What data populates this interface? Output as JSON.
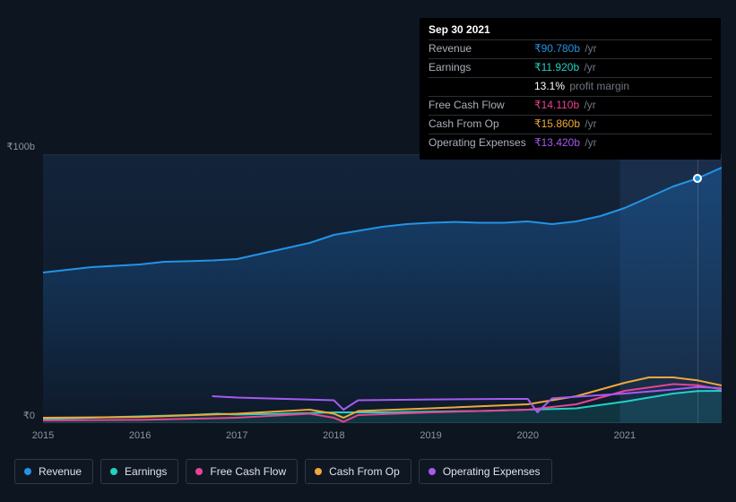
{
  "colors": {
    "background": "#0d1521",
    "grid": "#232b38",
    "plot_fill_top": "#13243b",
    "plot_fill_bottom": "#0d1521",
    "tooltip_bg": "#000000",
    "text_muted": "#8d95a2",
    "text": "#e0e3e9",
    "highlight_band": "rgba(40,70,110,0.35)"
  },
  "chart": {
    "type": "line",
    "xlim": [
      2015,
      2022
    ],
    "ylim": [
      0,
      100
    ],
    "ytick_top_label": "₹100b",
    "ytick_bottom_label": "₹0",
    "xticks": [
      2015,
      2016,
      2017,
      2018,
      2019,
      2020,
      2021
    ],
    "highlight_start_x": 2020.95,
    "cursor_x": 2021.75,
    "line_width": 2,
    "series": [
      {
        "id": "revenue",
        "name": "Revenue",
        "color": "#2393e6",
        "fill": "rgba(35,147,230,0.10)",
        "points": [
          [
            2015.0,
            56
          ],
          [
            2015.25,
            57
          ],
          [
            2015.5,
            58
          ],
          [
            2015.75,
            58.5
          ],
          [
            2016.0,
            59
          ],
          [
            2016.25,
            60
          ],
          [
            2016.5,
            60.2
          ],
          [
            2016.75,
            60.5
          ],
          [
            2017.0,
            61
          ],
          [
            2017.25,
            63
          ],
          [
            2017.5,
            65
          ],
          [
            2017.75,
            67
          ],
          [
            2018.0,
            70
          ],
          [
            2018.25,
            71.5
          ],
          [
            2018.5,
            73
          ],
          [
            2018.75,
            74
          ],
          [
            2019.0,
            74.5
          ],
          [
            2019.25,
            74.8
          ],
          [
            2019.5,
            74.5
          ],
          [
            2019.75,
            74.5
          ],
          [
            2020.0,
            75
          ],
          [
            2020.25,
            74
          ],
          [
            2020.5,
            75
          ],
          [
            2020.75,
            77
          ],
          [
            2021.0,
            80
          ],
          [
            2021.25,
            84
          ],
          [
            2021.5,
            88
          ],
          [
            2021.75,
            91
          ],
          [
            2022.0,
            95
          ]
        ]
      },
      {
        "id": "earnings",
        "name": "Earnings",
        "color": "#22d1c3",
        "fill": "rgba(34,209,195,0.15)",
        "points": [
          [
            2015.0,
            1.5
          ],
          [
            2015.5,
            2
          ],
          [
            2016.0,
            2.5
          ],
          [
            2016.5,
            3
          ],
          [
            2016.8,
            3.5
          ],
          [
            2017.0,
            3.2
          ],
          [
            2017.5,
            3.5
          ],
          [
            2018.0,
            4
          ],
          [
            2018.5,
            4
          ],
          [
            2019.0,
            4.3
          ],
          [
            2019.5,
            4.5
          ],
          [
            2020.0,
            5
          ],
          [
            2020.5,
            5.5
          ],
          [
            2021.0,
            8
          ],
          [
            2021.5,
            11
          ],
          [
            2021.75,
            11.9
          ],
          [
            2022.0,
            12
          ]
        ]
      },
      {
        "id": "fcf",
        "name": "Free Cash Flow",
        "color": "#e84393",
        "points": [
          [
            2015.0,
            1
          ],
          [
            2016.0,
            1.2
          ],
          [
            2017.0,
            2
          ],
          [
            2017.75,
            3.5
          ],
          [
            2018.0,
            2
          ],
          [
            2018.1,
            0.5
          ],
          [
            2018.25,
            3
          ],
          [
            2019.0,
            4
          ],
          [
            2020.0,
            5
          ],
          [
            2020.5,
            7
          ],
          [
            2021.0,
            12
          ],
          [
            2021.5,
            14.5
          ],
          [
            2021.75,
            14.1
          ],
          [
            2022.0,
            12.5
          ]
        ]
      },
      {
        "id": "cfo",
        "name": "Cash From Op",
        "color": "#f0a83a",
        "points": [
          [
            2015.0,
            2
          ],
          [
            2016.0,
            2.3
          ],
          [
            2017.0,
            3.5
          ],
          [
            2017.75,
            5
          ],
          [
            2018.0,
            3.5
          ],
          [
            2018.1,
            2
          ],
          [
            2018.25,
            4.5
          ],
          [
            2019.0,
            5.5
          ],
          [
            2020.0,
            7
          ],
          [
            2020.5,
            10
          ],
          [
            2021.0,
            15
          ],
          [
            2021.25,
            17
          ],
          [
            2021.5,
            17
          ],
          [
            2021.75,
            15.9
          ],
          [
            2022.0,
            14
          ]
        ]
      },
      {
        "id": "opex",
        "name": "Operating Expenses",
        "color": "#a55af0",
        "points": [
          [
            2016.75,
            10
          ],
          [
            2017.0,
            9.5
          ],
          [
            2017.5,
            9
          ],
          [
            2018.0,
            8.5
          ],
          [
            2018.1,
            5
          ],
          [
            2018.25,
            8.5
          ],
          [
            2019.0,
            8.8
          ],
          [
            2019.75,
            9
          ],
          [
            2020.0,
            9
          ],
          [
            2020.1,
            4
          ],
          [
            2020.25,
            9.2
          ],
          [
            2021.0,
            11
          ],
          [
            2021.5,
            12.5
          ],
          [
            2021.75,
            13.4
          ],
          [
            2022.0,
            13
          ]
        ]
      }
    ]
  },
  "tooltip": {
    "date": "Sep 30 2021",
    "rows": [
      {
        "label": "Revenue",
        "value": "₹90.780b",
        "unit": "/yr",
        "color": "#2393e6"
      },
      {
        "label": "Earnings",
        "value": "₹11.920b",
        "unit": "/yr",
        "color": "#22d1c3"
      },
      {
        "label": "",
        "value": "13.1%",
        "unit": "profit margin",
        "color": "#ffffff"
      },
      {
        "label": "Free Cash Flow",
        "value": "₹14.110b",
        "unit": "/yr",
        "color": "#e84393"
      },
      {
        "label": "Cash From Op",
        "value": "₹15.860b",
        "unit": "/yr",
        "color": "#f0a83a"
      },
      {
        "label": "Operating Expenses",
        "value": "₹13.420b",
        "unit": "/yr",
        "color": "#a55af0"
      }
    ]
  },
  "legend": [
    {
      "id": "revenue",
      "label": "Revenue",
      "color": "#2393e6"
    },
    {
      "id": "earnings",
      "label": "Earnings",
      "color": "#22d1c3"
    },
    {
      "id": "fcf",
      "label": "Free Cash Flow",
      "color": "#e84393"
    },
    {
      "id": "cfo",
      "label": "Cash From Op",
      "color": "#f0a83a"
    },
    {
      "id": "opex",
      "label": "Operating Expenses",
      "color": "#a55af0"
    }
  ],
  "cursor_marker": {
    "series": "revenue"
  }
}
